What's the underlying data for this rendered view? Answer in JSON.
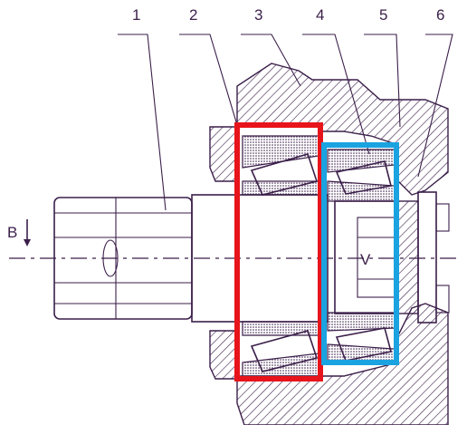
{
  "diagram": {
    "part_labels": [
      "1",
      "2",
      "3",
      "4",
      "5",
      "6"
    ],
    "section_label": "B",
    "center_label": "V",
    "colors": {
      "ink": "#3b1f4a",
      "box_red": "#e8141b",
      "box_blue": "#1aa3e0",
      "background": "#ffffff"
    },
    "highlights": [
      {
        "name": "red-highlight-box",
        "color": "#e8141b"
      },
      {
        "name": "blue-highlight-box",
        "color": "#1aa3e0"
      }
    ]
  }
}
